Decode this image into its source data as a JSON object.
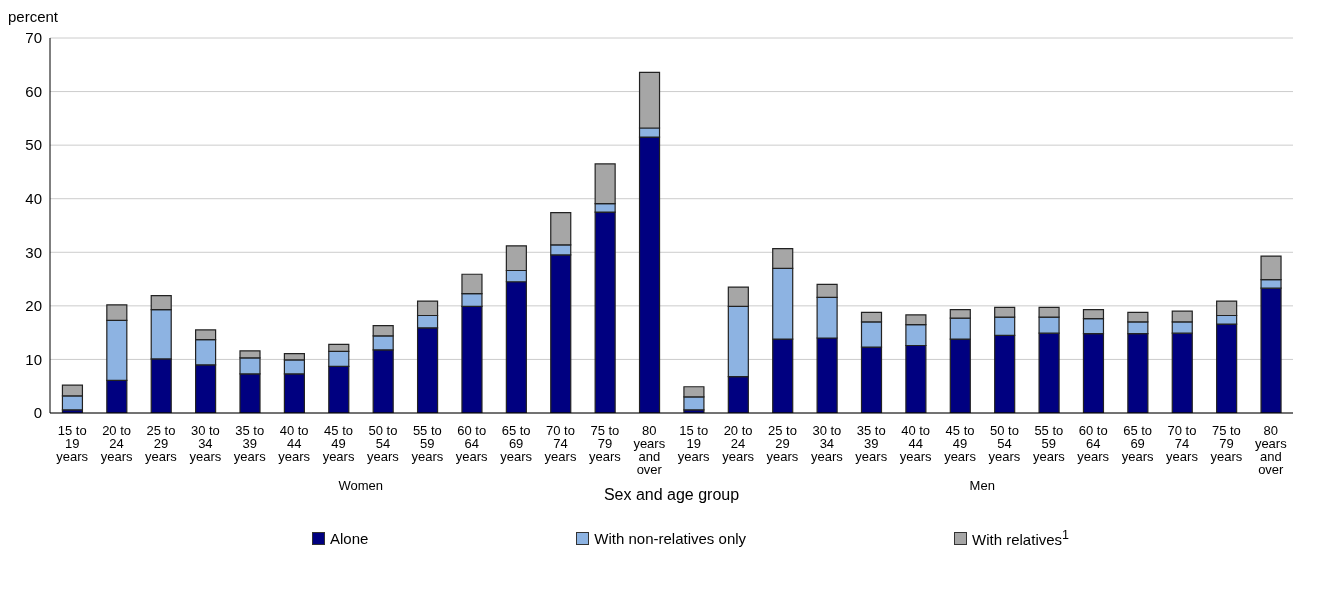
{
  "chart_data": {
    "type": "bar",
    "stacked": true,
    "ylabel": "percent",
    "xlabel": "Sex and age group",
    "categories": [
      "15 to 19 years",
      "20 to 24 years",
      "25 to 29 years",
      "30 to 34 years",
      "35 to 39 years",
      "40 to 44 years",
      "45 to 49 years",
      "50 to 54 years",
      "55 to 59 years",
      "60 to 64 years",
      "65 to 69 years",
      "70 to 74 years",
      "75 to 79 years",
      "80 years and over",
      "15 to 19 years",
      "20 to 24 years",
      "25 to 29 years",
      "30 to 34 years",
      "35 to 39 years",
      "40 to 44 years",
      "45 to 49 years",
      "50 to 54 years",
      "55 to 59 years",
      "60 to 64 years",
      "65 to 69 years",
      "70 to 74 years",
      "75 to 79 years",
      "80 years and over"
    ],
    "annotations": [
      "Women",
      "Men"
    ],
    "series": [
      {
        "name": "Alone",
        "color": "#000080",
        "values": [
          0.6,
          6.1,
          10.1,
          9.0,
          7.3,
          7.3,
          8.7,
          11.8,
          15.9,
          19.9,
          24.5,
          29.5,
          37.5,
          51.5,
          0.6,
          6.8,
          13.8,
          14.0,
          12.3,
          12.6,
          13.8,
          14.5,
          14.9,
          14.8,
          14.8,
          14.9,
          16.6,
          23.3
        ]
      },
      {
        "name": "With non-relatives only",
        "color": "#8db3e2",
        "values": [
          2.6,
          11.2,
          9.2,
          4.7,
          3.0,
          2.6,
          2.8,
          2.6,
          2.3,
          2.4,
          2.1,
          1.9,
          1.6,
          1.7,
          2.4,
          13.1,
          13.2,
          7.6,
          4.7,
          3.9,
          3.9,
          3.4,
          3.0,
          2.8,
          2.2,
          2.1,
          1.6,
          1.6
        ]
      },
      {
        "name": "With relatives$^{1}$",
        "color": "#a6a6a6",
        "values": [
          2.0,
          2.9,
          2.6,
          1.8,
          1.3,
          1.2,
          1.3,
          1.9,
          2.7,
          3.6,
          4.6,
          6.0,
          7.4,
          10.4,
          1.9,
          3.6,
          3.7,
          2.4,
          1.8,
          1.8,
          1.6,
          1.8,
          1.8,
          1.7,
          1.8,
          2.0,
          2.7,
          4.4
        ]
      }
    ],
    "ylim": [
      0,
      70
    ],
    "yticks": [
      0,
      10,
      20,
      30,
      40,
      50,
      60,
      70
    ],
    "grid": "y",
    "legend": "bottom"
  }
}
